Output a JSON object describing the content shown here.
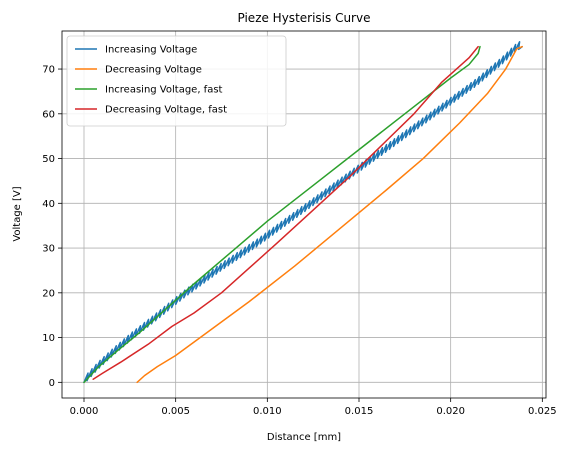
{
  "chart_data": {
    "type": "line",
    "title": "Pieze Hysterisis Curve",
    "xlabel": "Distance [mm]",
    "ylabel": "Voltage [V]",
    "xlim": [
      -0.0012,
      0.0252
    ],
    "ylim": [
      -3.5,
      78.5
    ],
    "xticks": [
      0.0,
      0.005,
      0.01,
      0.015,
      0.02,
      0.025
    ],
    "xtick_labels": [
      "0.000",
      "0.005",
      "0.010",
      "0.015",
      "0.020",
      "0.025"
    ],
    "yticks": [
      0,
      10,
      20,
      30,
      40,
      50,
      60,
      70
    ],
    "ytick_labels": [
      "0",
      "10",
      "20",
      "30",
      "40",
      "50",
      "60",
      "70"
    ],
    "grid": true,
    "legend_position": "top-left",
    "series": [
      {
        "name": "Increasing Voltage",
        "color": "#1f77b4",
        "sawtooth": true,
        "points": [
          [
            0.0,
            0
          ],
          [
            0.0008,
            3.5
          ],
          [
            0.0016,
            6.5
          ],
          [
            0.0026,
            10
          ],
          [
            0.004,
            14.5
          ],
          [
            0.0055,
            19.5
          ],
          [
            0.0075,
            25.5
          ],
          [
            0.0095,
            31
          ],
          [
            0.012,
            38.5
          ],
          [
            0.0145,
            46
          ],
          [
            0.017,
            53.5
          ],
          [
            0.0195,
            61
          ],
          [
            0.0215,
            67
          ],
          [
            0.0228,
            71.5
          ],
          [
            0.0237,
            75
          ],
          [
            0.0239,
            75
          ]
        ]
      },
      {
        "name": "Decreasing Voltage",
        "color": "#ff7f0e",
        "sawtooth": false,
        "points": [
          [
            0.0239,
            75
          ],
          [
            0.0236,
            74.5
          ],
          [
            0.023,
            70
          ],
          [
            0.022,
            64.5
          ],
          [
            0.0205,
            58
          ],
          [
            0.0185,
            50
          ],
          [
            0.0165,
            43
          ],
          [
            0.014,
            34.5
          ],
          [
            0.0115,
            26
          ],
          [
            0.009,
            18
          ],
          [
            0.0065,
            10.5
          ],
          [
            0.005,
            6
          ],
          [
            0.004,
            3.5
          ],
          [
            0.0033,
            1.5
          ],
          [
            0.0029,
            0
          ]
        ]
      },
      {
        "name": "Increasing Voltage, fast",
        "color": "#2ca02c",
        "sawtooth": false,
        "points": [
          [
            0.0,
            0
          ],
          [
            0.0008,
            3.5
          ],
          [
            0.0018,
            7
          ],
          [
            0.003,
            11
          ],
          [
            0.0045,
            16.5
          ],
          [
            0.006,
            22
          ],
          [
            0.008,
            29
          ],
          [
            0.01,
            36
          ],
          [
            0.0125,
            44
          ],
          [
            0.015,
            52
          ],
          [
            0.0175,
            60
          ],
          [
            0.02,
            68
          ],
          [
            0.021,
            71
          ],
          [
            0.0215,
            73.5
          ],
          [
            0.0216,
            75
          ]
        ]
      },
      {
        "name": "Decreasing Voltage, fast",
        "color": "#d62728",
        "sawtooth": false,
        "points": [
          [
            0.0215,
            75
          ],
          [
            0.021,
            72.5
          ],
          [
            0.0195,
            67
          ],
          [
            0.018,
            60
          ],
          [
            0.0165,
            54
          ],
          [
            0.0145,
            46
          ],
          [
            0.0125,
            38.5
          ],
          [
            0.0105,
            31
          ],
          [
            0.009,
            25.5
          ],
          [
            0.0075,
            20
          ],
          [
            0.006,
            15.5
          ],
          [
            0.0048,
            12.5
          ],
          [
            0.0035,
            8.5
          ],
          [
            0.002,
            4.5
          ],
          [
            0.001,
            2
          ],
          [
            0.0005,
            0.7
          ]
        ]
      }
    ]
  }
}
